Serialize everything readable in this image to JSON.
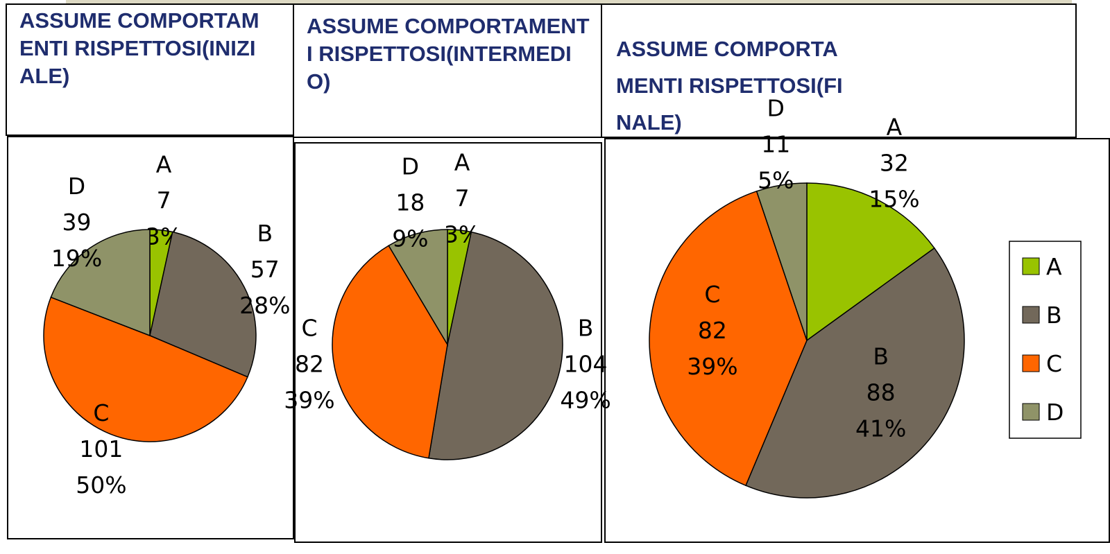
{
  "chart_data": [
    {
      "type": "pie",
      "title": "ASSUME COMPORTAMENTI RISPETTOSI(INIZIALE)",
      "categories": [
        "A",
        "B",
        "C",
        "D"
      ],
      "values": [
        7,
        57,
        101,
        39
      ],
      "percent_labels": [
        "3%",
        "28%",
        "50%",
        "19%"
      ],
      "colors": [
        "#99c300",
        "#72685a",
        "#ff6600",
        "#8f9368"
      ],
      "legend": false
    },
    {
      "type": "pie",
      "title": "ASSUME COMPORTAMENTI RISPETTOSI(INTERMEDIO)",
      "categories": [
        "A",
        "B",
        "C",
        "D"
      ],
      "values": [
        7,
        104,
        82,
        18
      ],
      "percent_labels": [
        "3%",
        "49%",
        "39%",
        "9%"
      ],
      "colors": [
        "#99c300",
        "#72685a",
        "#ff6600",
        "#8f9368"
      ],
      "legend": false
    },
    {
      "type": "pie",
      "title": "ASSUME COMPORTAMENTI RISPETTOSI(FINALE)",
      "categories": [
        "A",
        "B",
        "C",
        "D"
      ],
      "values": [
        32,
        88,
        82,
        11
      ],
      "percent_labels": [
        "15%",
        "41%",
        "39%",
        "5%"
      ],
      "colors": [
        "#99c300",
        "#72685a",
        "#ff6600",
        "#8f9368"
      ],
      "legend": true
    }
  ]
}
